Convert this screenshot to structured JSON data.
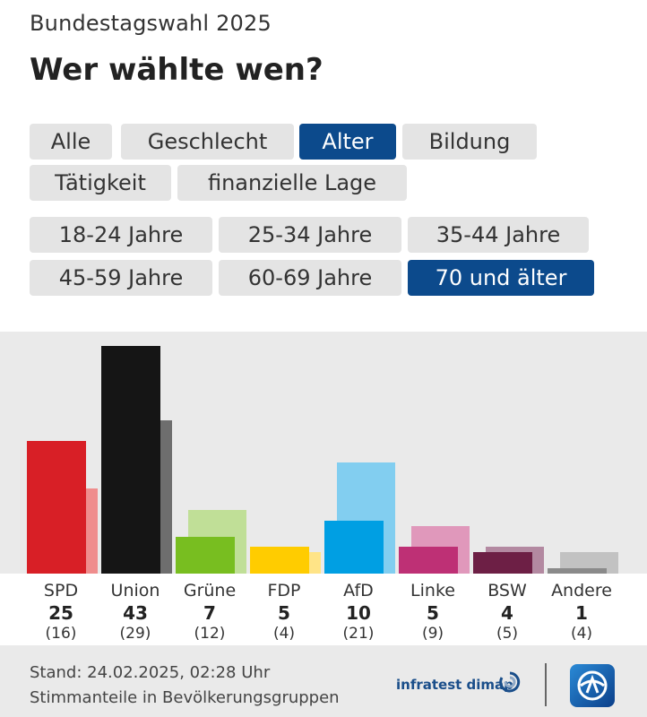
{
  "header": {
    "subtitle": "Bundestagswahl 2025",
    "title": "Wer wählte wen?"
  },
  "filters": {
    "categories": [
      {
        "label": "Alle",
        "active": false
      },
      {
        "label": "Geschlecht",
        "active": false
      },
      {
        "label": "Alter",
        "active": true
      },
      {
        "label": "Bildung",
        "active": false
      },
      {
        "label": "Tätigkeit",
        "active": false
      },
      {
        "label": "finanzielle Lage",
        "active": false
      }
    ],
    "groups": [
      {
        "label": "18-24 Jahre",
        "active": false
      },
      {
        "label": "25-34 Jahre",
        "active": false
      },
      {
        "label": "35-44 Jahre",
        "active": false
      },
      {
        "label": "45-59 Jahre",
        "active": false
      },
      {
        "label": "60-69 Jahre",
        "active": false
      },
      {
        "label": "70 und älter",
        "active": true
      }
    ]
  },
  "chart_data": {
    "type": "bar",
    "ylim": [
      0,
      43
    ],
    "grid": false,
    "categories": [
      "SPD",
      "Union",
      "Grüne",
      "FDP",
      "AfD",
      "Linke",
      "BSW",
      "Andere"
    ],
    "series": [
      {
        "values": [
          25,
          43,
          7,
          5,
          10,
          5,
          4,
          1
        ]
      },
      {
        "values": [
          16,
          29,
          12,
          4,
          21,
          9,
          5,
          4
        ]
      }
    ],
    "value_labels": [
      "25",
      "43",
      "7",
      "5",
      "10",
      "5",
      "4",
      "1"
    ],
    "previous_labels": [
      "(16)",
      "(29)",
      "(12)",
      "(4)",
      "(21)",
      "(9)",
      "(5)",
      "(4)"
    ],
    "colors": {
      "current": [
        "#d81f26",
        "#151515",
        "#78be20",
        "#ffcc00",
        "#009fe3",
        "#be3075",
        "#6d1f45",
        "#8a8a8a"
      ],
      "previous": [
        "#ef8d8d",
        "#6e6e6e",
        "#c0df97",
        "#ffe487",
        "#82cef0",
        "#e098bb",
        "#b389a1",
        "#c2c2c2"
      ]
    }
  },
  "footer": {
    "stand": "Stand: 24.02.2025, 02:28 Uhr",
    "note": "Stimmanteile in Bevölkerungsgruppen",
    "brand": "infratest dimap"
  }
}
